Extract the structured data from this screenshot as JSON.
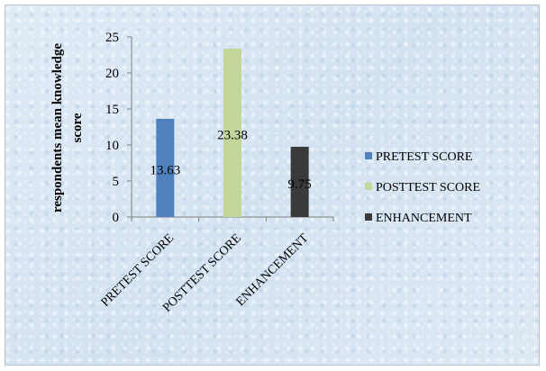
{
  "chart_data": {
    "type": "bar",
    "categories": [
      "PRETEST SCORE",
      "POSTTEST SCORE",
      "ENHANCEMENT"
    ],
    "values": [
      13.63,
      23.38,
      9.75
    ],
    "data_labels": [
      "13.63",
      "23.38",
      "9.75"
    ],
    "colors": [
      "#4f81bd",
      "#c3d69b",
      "#3a3a3a"
    ],
    "ylabel_line1": "respondents mean knowledge",
    "ylabel_line2": "score",
    "ylim": [
      0,
      25
    ],
    "yticks": [
      0,
      5,
      10,
      15,
      20,
      25
    ],
    "legend_position": "right",
    "legend": [
      "PRETEST SCORE",
      "POSTTEST SCORE",
      "ENHANCEMENT"
    ],
    "grid": false
  }
}
